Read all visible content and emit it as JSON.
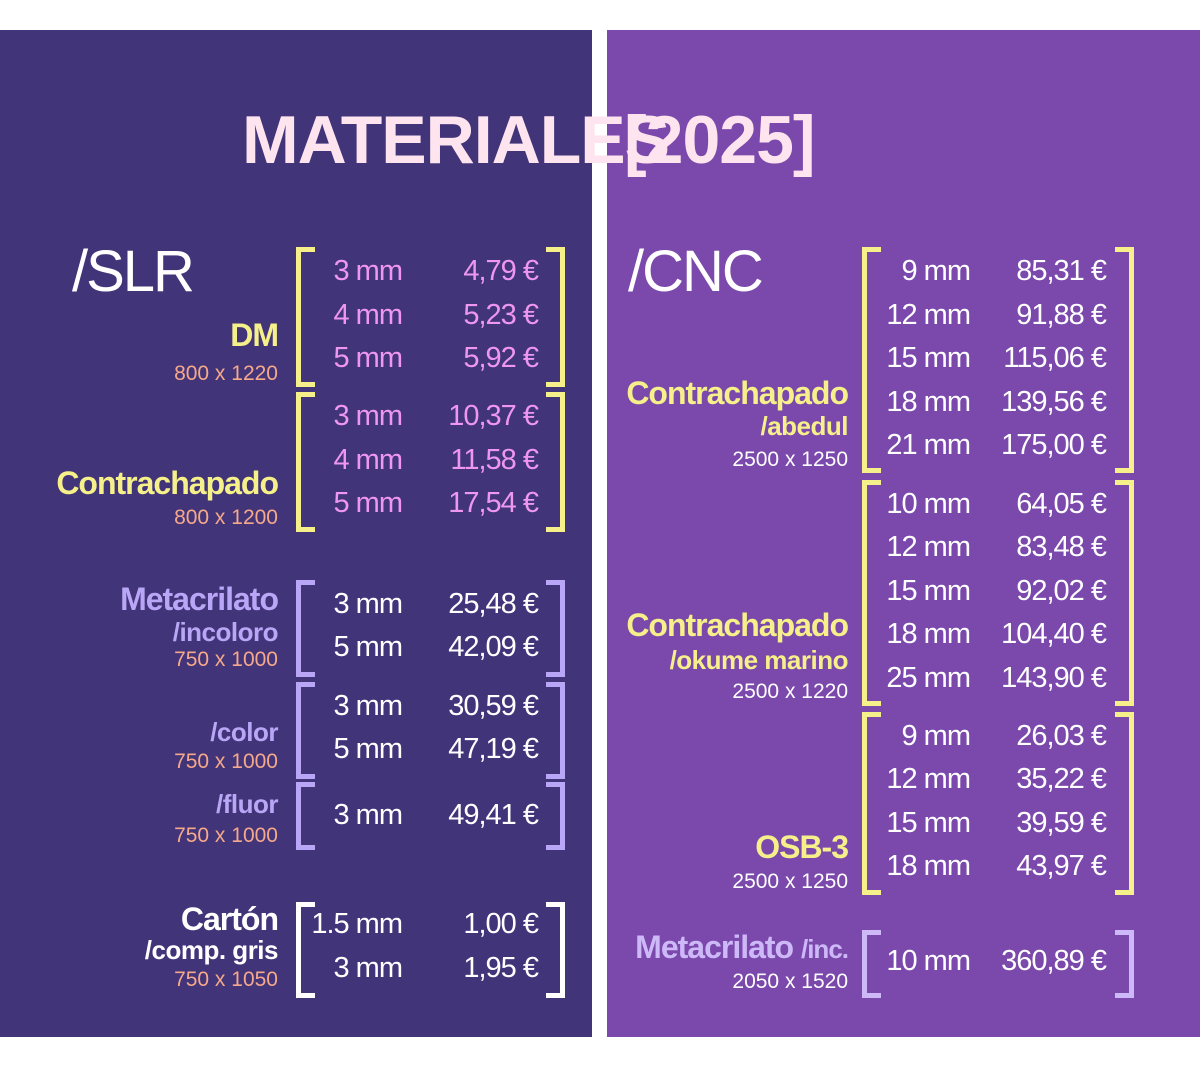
{
  "title": {
    "left": "MATERIALES",
    "right": "[2025]"
  },
  "colors": {
    "left_bg": "#413479",
    "right_bg": "#7b48ac",
    "yellow": "#f6f08a",
    "pink_text": "#ee96f0",
    "salmon": "#f6a88a",
    "lavender": "#b9a6f6",
    "white": "#ffffff",
    "cream": "#fde4ee"
  },
  "slr": {
    "label": "/SLR",
    "groups": [
      {
        "name": "DM",
        "sub": "",
        "dims": "800 x 1220",
        "rows": [
          {
            "thickness": "3 mm",
            "price": "4,79 €"
          },
          {
            "thickness": "4 mm",
            "price": "5,23 €"
          },
          {
            "thickness": "5 mm",
            "price": "5,92 €"
          }
        ]
      },
      {
        "name": "Contrachapado",
        "sub": "",
        "dims": "800 x 1200",
        "rows": [
          {
            "thickness": "3 mm",
            "price": "10,37 €"
          },
          {
            "thickness": "4 mm",
            "price": "11,58 €"
          },
          {
            "thickness": "5 mm",
            "price": "17,54 €"
          }
        ]
      },
      {
        "name": "Metacrilato",
        "sub": "/incoloro",
        "dims": "750 x 1000",
        "rows": [
          {
            "thickness": "3 mm",
            "price": "25,48 €"
          },
          {
            "thickness": "5 mm",
            "price": "42,09 €"
          }
        ]
      },
      {
        "name": "",
        "sub": "/color",
        "dims": "750 x 1000",
        "rows": [
          {
            "thickness": "3 mm",
            "price": "30,59 €"
          },
          {
            "thickness": "5 mm",
            "price": "47,19 €"
          }
        ]
      },
      {
        "name": "",
        "sub": "/fluor",
        "dims": "750 x 1000",
        "rows": [
          {
            "thickness": "3 mm",
            "price": "49,41 €"
          }
        ]
      },
      {
        "name": "Cartón",
        "sub": "/comp. gris",
        "dims": "750 x 1050",
        "rows": [
          {
            "thickness": "1.5 mm",
            "price": "1,00 €"
          },
          {
            "thickness": "3 mm",
            "price": "1,95 €"
          }
        ]
      }
    ]
  },
  "cnc": {
    "label": "/CNC",
    "groups": [
      {
        "name": "Contrachapado",
        "sub": "/abedul",
        "dims": "2500 x 1250",
        "rows": [
          {
            "thickness": "9 mm",
            "price": "85,31 €"
          },
          {
            "thickness": "12 mm",
            "price": "91,88 €"
          },
          {
            "thickness": "15 mm",
            "price": "115,06 €"
          },
          {
            "thickness": "18 mm",
            "price": "139,56 €"
          },
          {
            "thickness": "21 mm",
            "price": "175,00 €"
          }
        ]
      },
      {
        "name": "Contrachapado",
        "sub": "/okume marino",
        "dims": "2500 x 1220",
        "rows": [
          {
            "thickness": "10 mm",
            "price": "64,05 €"
          },
          {
            "thickness": "12 mm",
            "price": "83,48 €"
          },
          {
            "thickness": "15 mm",
            "price": "92,02 €"
          },
          {
            "thickness": "18 mm",
            "price": "104,40 €"
          },
          {
            "thickness": "25 mm",
            "price": "143,90 €"
          }
        ]
      },
      {
        "name": "OSB-3",
        "sub": "",
        "dims": "2500 x 1250",
        "rows": [
          {
            "thickness": "9 mm",
            "price": "26,03 €"
          },
          {
            "thickness": "12 mm",
            "price": "35,22 €"
          },
          {
            "thickness": "15 mm",
            "price": "39,59 €"
          },
          {
            "thickness": "18 mm",
            "price": "43,97 €"
          }
        ]
      },
      {
        "name": "Metacrilato",
        "sub": "/inc.",
        "dims": "2050 x 1520",
        "rows": [
          {
            "thickness": "10 mm",
            "price": "360,89 €"
          }
        ]
      }
    ]
  }
}
